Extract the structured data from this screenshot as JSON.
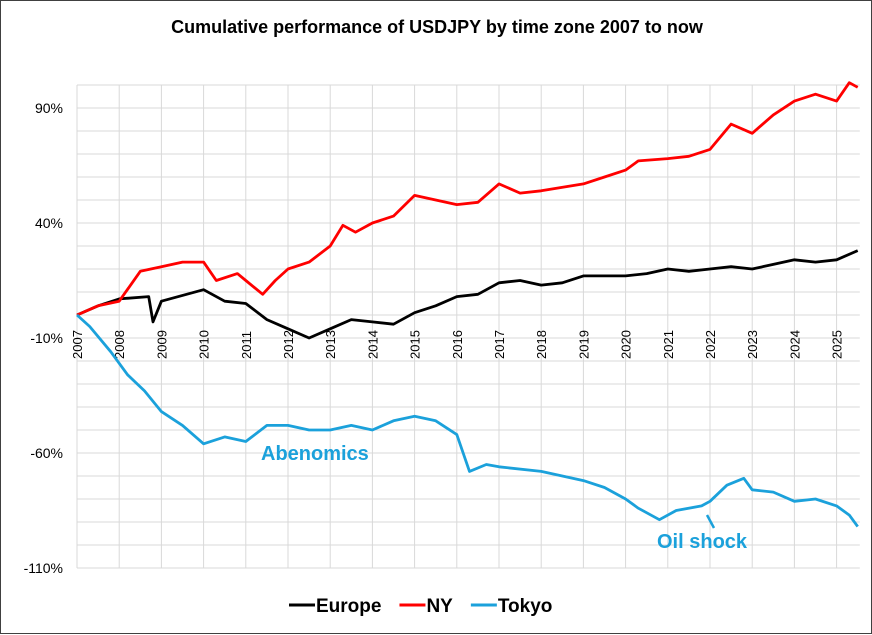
{
  "chart_data": {
    "type": "line",
    "title": "Cumulative performance of USDJPY by time zone 2007 to now",
    "xlabel": "",
    "ylabel": "",
    "x_ticks": [
      "2007",
      "2008",
      "2009",
      "2010",
      "2011",
      "2012",
      "2013",
      "2014",
      "2015",
      "2016",
      "2017",
      "2018",
      "2019",
      "2020",
      "2021",
      "2022",
      "2023",
      "2024",
      "2025"
    ],
    "y_ticks": [
      "90%",
      "40%",
      "-10%",
      "-60%",
      "-110%"
    ],
    "y_tick_values": [
      90,
      40,
      -10,
      -60,
      -110
    ],
    "xlim": [
      2007,
      2025.55
    ],
    "ylim": [
      -110,
      100
    ],
    "grid": true,
    "legend_position": "bottom",
    "series": [
      {
        "name": "Europe",
        "color": "#000000",
        "x": [
          2007,
          2007.5,
          2008,
          2008.7,
          2008.8,
          2009,
          2010,
          2010.5,
          2011,
          2011.5,
          2012,
          2012.5,
          2013,
          2013.5,
          2014,
          2014.5,
          2015,
          2015.5,
          2016,
          2016.5,
          2017,
          2017.5,
          2018,
          2018.5,
          2019,
          2020,
          2020.5,
          2021,
          2021.5,
          2022,
          2022.5,
          2023,
          2023.5,
          2024,
          2024.5,
          2025,
          2025.5
        ],
        "y": [
          0,
          4,
          7,
          8,
          -3,
          6,
          11,
          6,
          5,
          -2,
          -6,
          -10,
          -6,
          -2,
          -3,
          -4,
          1,
          4,
          8,
          9,
          14,
          15,
          13,
          14,
          17,
          17,
          18,
          20,
          19,
          20,
          21,
          20,
          22,
          24,
          23,
          24,
          28
        ]
      },
      {
        "name": "NY",
        "color": "#FF0000",
        "x": [
          2007,
          2007.5,
          2008,
          2008.5,
          2009,
          2009.5,
          2010,
          2010.3,
          2010.8,
          2011,
          2011.4,
          2011.7,
          2012,
          2012.5,
          2013,
          2013.3,
          2013.6,
          2014,
          2014.5,
          2015,
          2015.5,
          2016,
          2016.5,
          2017,
          2017.5,
          2018,
          2019,
          2019.5,
          2020,
          2020.3,
          2021,
          2021.5,
          2022,
          2022.5,
          2023,
          2023.5,
          2024,
          2024.5,
          2025,
          2025.3,
          2025.5
        ],
        "y": [
          0,
          4,
          6,
          19,
          21,
          23,
          23,
          15,
          18,
          15,
          9,
          15,
          20,
          23,
          30,
          39,
          36,
          40,
          43,
          52,
          50,
          48,
          49,
          57,
          53,
          54,
          57,
          60,
          63,
          67,
          68,
          69,
          72,
          83,
          79,
          87,
          93,
          96,
          93,
          101,
          99
        ]
      },
      {
        "name": "Tokyo",
        "color": "#1BA1DB",
        "x": [
          2007,
          2007.3,
          2007.8,
          2008.2,
          2008.6,
          2009,
          2009.5,
          2010,
          2010.5,
          2011,
          2011.5,
          2012,
          2012.5,
          2013,
          2013.5,
          2014,
          2014.5,
          2015,
          2015.5,
          2016,
          2016.3,
          2016.7,
          2017,
          2018,
          2018.5,
          2019,
          2019.5,
          2020,
          2020.3,
          2020.8,
          2021.2,
          2021.8,
          2022,
          2022.4,
          2022.8,
          2023,
          2023.5,
          2024,
          2024.5,
          2025,
          2025.3,
          2025.5
        ],
        "y": [
          0,
          -5,
          -16,
          -26,
          -33,
          -42,
          -48,
          -56,
          -53,
          -55,
          -48,
          -48,
          -50,
          -50,
          -48,
          -50,
          -46,
          -44,
          -46,
          -52,
          -68,
          -65,
          -66,
          -68,
          -70,
          -72,
          -75,
          -80,
          -84,
          -89,
          -85,
          -83,
          -81,
          -74,
          -71,
          -76,
          -77,
          -81,
          -80,
          -83,
          -87,
          -92
        ]
      }
    ],
    "annotations": [
      {
        "text": "Abenomics",
        "color": "#1BA1DB"
      },
      {
        "text": "Oil shock",
        "color": "#1BA1DB"
      }
    ]
  }
}
